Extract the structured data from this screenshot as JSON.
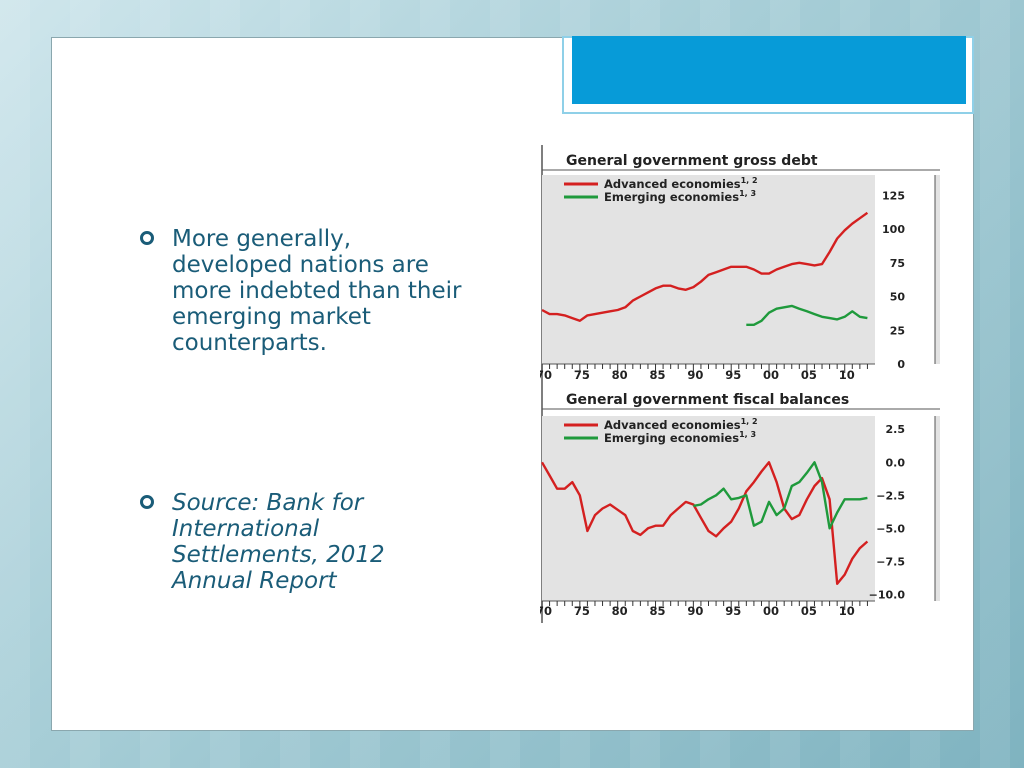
{
  "bullets": [
    {
      "text": "More generally, developed nations are more indebted than their emerging market counterparts."
    },
    {
      "text": "Source: Bank for International Settlements, 2012 Annual Report"
    }
  ],
  "colors": {
    "accent": "#079bd8",
    "text": "#1a5c78",
    "advanced": "#d42020",
    "emerging": "#1f9a3c",
    "panel_bg": "#e3e3e3"
  },
  "chart_data": [
    {
      "type": "line",
      "title": "General government gross debt",
      "xlabel": "",
      "ylabel": "",
      "x_ticks": [
        "70",
        "75",
        "80",
        "85",
        "90",
        "95",
        "00",
        "05",
        "10"
      ],
      "y_ticks": [
        "0",
        "25",
        "50",
        "75",
        "100",
        "125"
      ],
      "ylim": [
        0,
        140
      ],
      "xlim": [
        1970,
        2014
      ],
      "legend": [
        {
          "name": "Advanced economies",
          "sup": "1, 2"
        },
        {
          "name": "Emerging economies",
          "sup": "1, 3"
        }
      ],
      "series": [
        {
          "name": "Advanced economies",
          "x": [
            1970,
            1971,
            1972,
            1973,
            1974,
            1975,
            1976,
            1977,
            1978,
            1979,
            1980,
            1981,
            1982,
            1983,
            1984,
            1985,
            1986,
            1987,
            1988,
            1989,
            1990,
            1991,
            1992,
            1993,
            1994,
            1995,
            1996,
            1997,
            1998,
            1999,
            2000,
            2001,
            2002,
            2003,
            2004,
            2005,
            2006,
            2007,
            2008,
            2009,
            2010,
            2011,
            2012,
            2013
          ],
          "y": [
            40,
            37,
            37,
            36,
            34,
            32,
            36,
            37,
            38,
            39,
            40,
            42,
            47,
            50,
            53,
            56,
            58,
            58,
            56,
            55,
            57,
            61,
            66,
            68,
            70,
            72,
            72,
            72,
            70,
            67,
            67,
            70,
            72,
            74,
            75,
            74,
            73,
            74,
            83,
            93,
            99,
            104,
            108,
            112
          ]
        },
        {
          "name": "Emerging economies",
          "x": [
            1997,
            1998,
            1999,
            2000,
            2001,
            2002,
            2003,
            2004,
            2005,
            2006,
            2007,
            2008,
            2009,
            2010,
            2011,
            2012,
            2013
          ],
          "y": [
            29,
            29,
            32,
            38,
            41,
            42,
            43,
            41,
            39,
            37,
            35,
            34,
            33,
            35,
            39,
            35,
            34
          ]
        }
      ]
    },
    {
      "type": "line",
      "title": "General government fiscal balances",
      "xlabel": "",
      "ylabel": "",
      "x_ticks": [
        "70",
        "75",
        "80",
        "85",
        "90",
        "95",
        "00",
        "05",
        "10"
      ],
      "y_ticks": [
        "2.5",
        "0.0",
        "−2.5",
        "−5.0",
        "−7.5",
        "−10.0"
      ],
      "ylim": [
        -10.5,
        3.5
      ],
      "xlim": [
        1970,
        2014
      ],
      "legend": [
        {
          "name": "Advanced economies",
          "sup": "1, 2"
        },
        {
          "name": "Emerging economies",
          "sup": "1, 3"
        }
      ],
      "series": [
        {
          "name": "Advanced economies",
          "x": [
            1970,
            1971,
            1972,
            1973,
            1974,
            1975,
            1976,
            1977,
            1978,
            1979,
            1980,
            1981,
            1982,
            1983,
            1984,
            1985,
            1986,
            1987,
            1988,
            1989,
            1990,
            1991,
            1992,
            1993,
            1994,
            1995,
            1996,
            1997,
            1998,
            1999,
            2000,
            2001,
            2002,
            2003,
            2004,
            2005,
            2006,
            2007,
            2008,
            2009,
            2010,
            2011,
            2012,
            2013
          ],
          "y": [
            0.0,
            -1.0,
            -2.0,
            -2.0,
            -1.5,
            -2.5,
            -5.2,
            -4.0,
            -3.5,
            -3.2,
            -3.6,
            -4.0,
            -5.2,
            -5.5,
            -5.0,
            -4.8,
            -4.8,
            -4.0,
            -3.5,
            -3.0,
            -3.2,
            -4.2,
            -5.2,
            -5.6,
            -5.0,
            -4.5,
            -3.5,
            -2.2,
            -1.5,
            -0.7,
            0.0,
            -1.5,
            -3.5,
            -4.3,
            -4.0,
            -2.8,
            -1.8,
            -1.2,
            -2.8,
            -9.2,
            -8.5,
            -7.3,
            -6.5,
            -6.0
          ]
        },
        {
          "name": "Emerging economies",
          "x": [
            1990,
            1991,
            1992,
            1993,
            1994,
            1995,
            1996,
            1997,
            1998,
            1999,
            2000,
            2001,
            2002,
            2003,
            2004,
            2005,
            2006,
            2007,
            2008,
            2009,
            2010,
            2011,
            2012,
            2013
          ],
          "y": [
            -3.3,
            -3.2,
            -2.8,
            -2.5,
            -2.0,
            -2.8,
            -2.7,
            -2.5,
            -4.8,
            -4.5,
            -3.0,
            -4.0,
            -3.5,
            -1.8,
            -1.5,
            -0.8,
            0.0,
            -1.5,
            -5.0,
            -3.8,
            -2.8,
            -2.8,
            -2.8,
            -2.7
          ]
        }
      ]
    }
  ]
}
